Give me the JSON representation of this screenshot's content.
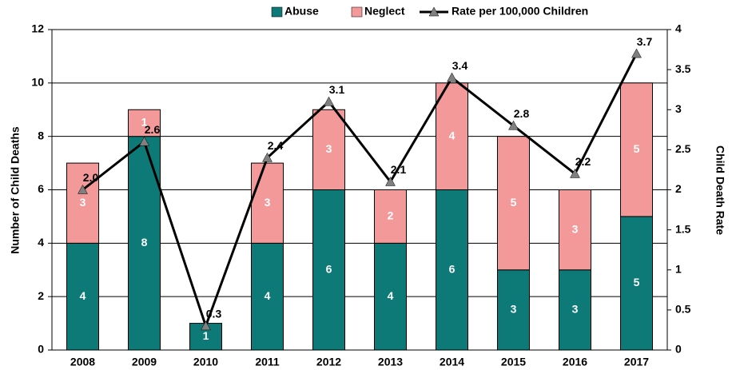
{
  "chart_data": {
    "type": "bar",
    "categories": [
      "2008",
      "2009",
      "2010",
      "2011",
      "2012",
      "2013",
      "2014",
      "2015",
      "2016",
      "2017"
    ],
    "series": [
      {
        "name": "Abuse",
        "color": "#0e7a78",
        "values": [
          4,
          8,
          1,
          4,
          6,
          4,
          6,
          3,
          3,
          5
        ]
      },
      {
        "name": "Neglect",
        "color": "#f4999a",
        "values": [
          3,
          1,
          0,
          3,
          3,
          2,
          4,
          5,
          3,
          5
        ]
      },
      {
        "name": "Rate per 100,000 Children",
        "type": "line",
        "axis": "y2",
        "color": "#000000",
        "marker_color": "#808080",
        "values": [
          2.0,
          2.6,
          0.3,
          2.4,
          3.1,
          2.1,
          3.4,
          2.8,
          2.2,
          3.7
        ],
        "value_labels": [
          "2.0",
          "2.6",
          "0.3",
          "2.4",
          "3.1",
          "2.1",
          "3.4",
          "2.8",
          "2.2",
          "3.7"
        ]
      }
    ],
    "ylabel": "Number of Child Deaths",
    "y2label": "Child Death Rate",
    "ylim": [
      0,
      12
    ],
    "yticks": [
      0,
      2,
      4,
      6,
      8,
      10,
      12
    ],
    "y2lim": [
      0,
      4
    ],
    "y2ticks": [
      0,
      0.5,
      1,
      1.5,
      2,
      2.5,
      3,
      3.5,
      4
    ],
    "grid": true,
    "legend": "top"
  }
}
